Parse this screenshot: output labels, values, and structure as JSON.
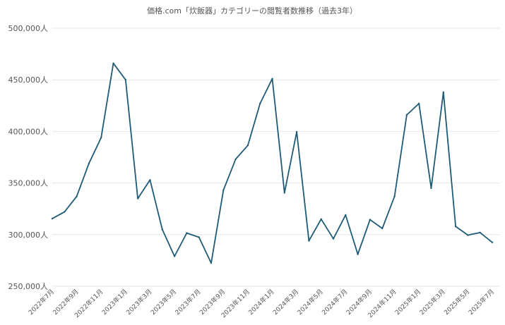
{
  "chart_data": {
    "type": "line",
    "title": "価格.com「炊飯器」カテゴリーの閲覧者数推移（過去3年）",
    "xlabel": "",
    "ylabel": "",
    "ylim": [
      250000,
      500000
    ],
    "yticks": [
      "250,000人",
      "300,000人",
      "350,000人",
      "400,000人",
      "450,000人",
      "500,000人"
    ],
    "ytick_values": [
      250000,
      300000,
      350000,
      400000,
      450000,
      500000
    ],
    "grid": true,
    "legend": "none",
    "line_color": "#1f5b75",
    "x": [
      "2022年7月",
      "2022年8月",
      "2022年9月",
      "2022年10月",
      "2022年11月",
      "2022年12月",
      "2023年1月",
      "2023年2月",
      "2023年3月",
      "2023年4月",
      "2023年5月",
      "2023年6月",
      "2023年7月",
      "2023年8月",
      "2023年9月",
      "2023年10月",
      "2023年11月",
      "2023年12月",
      "2024年1月",
      "2024年2月",
      "2024年3月",
      "2024年4月",
      "2024年5月",
      "2024年6月",
      "2024年7月",
      "2024年8月",
      "2024年9月",
      "2024年10月",
      "2024年11月",
      "2024年12月",
      "2025年1月",
      "2025年2月",
      "2025年3月",
      "2025年4月",
      "2025年5月",
      "2025年6月",
      "2025年7月"
    ],
    "x_tick_labels": [
      "2022年7月",
      "2022年9月",
      "2022年11月",
      "2023年1月",
      "2023年3月",
      "2023年5月",
      "2023年7月",
      "2023年9月",
      "2023年11月",
      "2024年1月",
      "2024年3月",
      "2024年5月",
      "2024年7月",
      "2024年9月",
      "2024年11月",
      "2025年1月",
      "2025年3月",
      "2025年5月",
      "2025年7月"
    ],
    "series": [
      {
        "values": [
          315500,
          322000,
          337000,
          369000,
          394000,
          466000,
          450000,
          335000,
          353000,
          305000,
          279000,
          301500,
          297500,
          272500,
          343000,
          373000,
          386500,
          427000,
          451000,
          340500,
          399500,
          294000,
          315000,
          296000,
          319000,
          281000,
          314500,
          306000,
          337000,
          416000,
          427000,
          345000,
          438000,
          308000,
          299500,
          302000,
          292500
        ]
      }
    ]
  }
}
